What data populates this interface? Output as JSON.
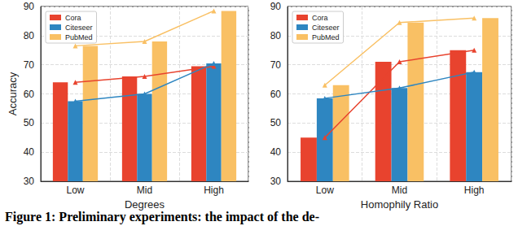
{
  "chart_data": [
    {
      "type": "bar",
      "xlabel": "Degrees",
      "ylabel": "Accuracy",
      "categories": [
        "Low",
        "Mid",
        "High"
      ],
      "ylim": [
        30,
        90
      ],
      "yticks": [
        30,
        40,
        50,
        60,
        70,
        80,
        90
      ],
      "grid": true,
      "legend": "upper left",
      "series": [
        {
          "name": "Cora",
          "type": "bar",
          "color": "#e8432e",
          "values": [
            64,
            66,
            69.5
          ]
        },
        {
          "name": "Citeseer",
          "type": "bar",
          "color": "#2e86c1",
          "values": [
            57.5,
            60,
            70.5
          ]
        },
        {
          "name": "PubMed",
          "type": "bar",
          "color": "#f9c064",
          "values": [
            76.5,
            78,
            88.5
          ]
        },
        {
          "name": "Cora",
          "type": "line",
          "color": "#e8432e",
          "marker": "triangle",
          "values": [
            64,
            66,
            69.5
          ]
        },
        {
          "name": "Citeseer",
          "type": "line",
          "color": "#2e86c1",
          "marker": "triangle",
          "values": [
            57.5,
            60,
            70.5
          ]
        },
        {
          "name": "PubMed",
          "type": "line",
          "color": "#f9c064",
          "marker": "triangle",
          "values": [
            76.5,
            78,
            88.5
          ]
        }
      ]
    },
    {
      "type": "bar",
      "xlabel": "Homophily Ratio",
      "categories": [
        "Low",
        "Mid",
        "High"
      ],
      "ylim": [
        30,
        90
      ],
      "yticks": [
        30,
        40,
        50,
        60,
        70,
        80,
        90
      ],
      "grid": true,
      "legend": "upper left",
      "series": [
        {
          "name": "Cora",
          "type": "bar",
          "color": "#e8432e",
          "values": [
            45,
            71,
            75
          ]
        },
        {
          "name": "Citeseer",
          "type": "bar",
          "color": "#2e86c1",
          "values": [
            58.5,
            62,
            67.5
          ]
        },
        {
          "name": "PubMed",
          "type": "bar",
          "color": "#f9c064",
          "values": [
            63,
            84.5,
            86
          ]
        },
        {
          "name": "Cora",
          "type": "line",
          "color": "#e8432e",
          "marker": "triangle",
          "values": [
            45,
            71,
            75
          ]
        },
        {
          "name": "Citeseer",
          "type": "line",
          "color": "#2e86c1",
          "marker": "triangle",
          "values": [
            58.5,
            62,
            67.5
          ]
        },
        {
          "name": "PubMed",
          "type": "line",
          "color": "#f9c064",
          "marker": "triangle",
          "values": [
            63,
            84.5,
            86
          ]
        }
      ]
    }
  ],
  "caption": "Figure 1: Preliminary experiments: the impact of the de-"
}
